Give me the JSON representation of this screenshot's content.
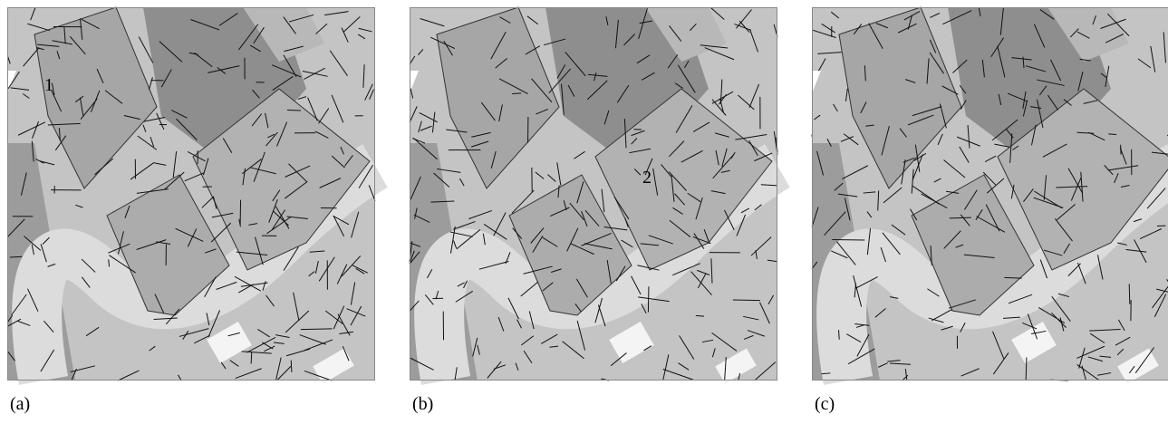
{
  "panels": [
    {
      "caption": "(a)",
      "annotation": "1"
    },
    {
      "caption": "(b)",
      "annotation": "2"
    },
    {
      "caption": "(c)"
    }
  ]
}
